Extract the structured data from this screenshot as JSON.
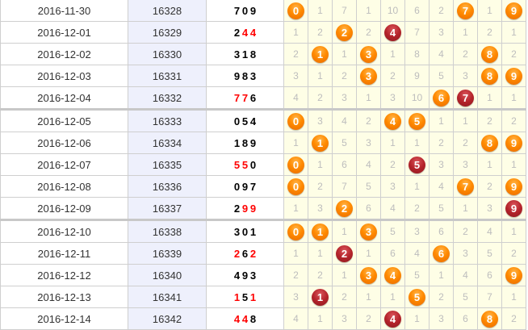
{
  "colors": {
    "hit_ball": "#ff8a00",
    "repeat_ball": "#b4232b",
    "repeat_digit": "#ff0000",
    "issue_bg": "#eef0fc",
    "cell_bg": "#fefee6"
  },
  "rows": [
    {
      "date": "2016-11-30",
      "issue": "16328",
      "draw": [
        "7",
        "0",
        "9"
      ],
      "repeat": null,
      "cells": [
        "0",
        "1",
        "7",
        "1",
        "10",
        "6",
        "2",
        "7",
        "1",
        "9"
      ],
      "hits": [
        0,
        7,
        9
      ]
    },
    {
      "date": "2016-12-01",
      "issue": "16329",
      "draw": [
        "2",
        "4",
        "4"
      ],
      "repeat": "4",
      "cells": [
        "1",
        "2",
        "2",
        "2",
        "4",
        "7",
        "3",
        "1",
        "2",
        "1"
      ],
      "hits": [
        2,
        4
      ]
    },
    {
      "date": "2016-12-02",
      "issue": "16330",
      "draw": [
        "3",
        "1",
        "8"
      ],
      "repeat": null,
      "cells": [
        "2",
        "1",
        "1",
        "3",
        "1",
        "8",
        "4",
        "2",
        "8",
        "2"
      ],
      "hits": [
        1,
        3,
        8
      ]
    },
    {
      "date": "2016-12-03",
      "issue": "16331",
      "draw": [
        "9",
        "8",
        "3"
      ],
      "repeat": null,
      "cells": [
        "3",
        "1",
        "2",
        "3",
        "2",
        "9",
        "5",
        "3",
        "8",
        "9"
      ],
      "hits": [
        3,
        8,
        9
      ]
    },
    {
      "date": "2016-12-04",
      "issue": "16332",
      "draw": [
        "7",
        "7",
        "6"
      ],
      "repeat": "7",
      "cells": [
        "4",
        "2",
        "3",
        "1",
        "3",
        "10",
        "6",
        "7",
        "1",
        "1"
      ],
      "hits": [
        6,
        7
      ]
    },
    {
      "date": "2016-12-05",
      "issue": "16333",
      "draw": [
        "0",
        "5",
        "4"
      ],
      "repeat": null,
      "cells": [
        "0",
        "3",
        "4",
        "2",
        "4",
        "5",
        "1",
        "1",
        "2",
        "2"
      ],
      "hits": [
        0,
        4,
        5
      ]
    },
    {
      "date": "2016-12-06",
      "issue": "16334",
      "draw": [
        "1",
        "8",
        "9"
      ],
      "repeat": null,
      "cells": [
        "1",
        "1",
        "5",
        "3",
        "1",
        "1",
        "2",
        "2",
        "8",
        "9"
      ],
      "hits": [
        1,
        8,
        9
      ]
    },
    {
      "date": "2016-12-07",
      "issue": "16335",
      "draw": [
        "5",
        "5",
        "0"
      ],
      "repeat": "5",
      "cells": [
        "0",
        "1",
        "6",
        "4",
        "2",
        "5",
        "3",
        "3",
        "1",
        "1"
      ],
      "hits": [
        0,
        5
      ]
    },
    {
      "date": "2016-12-08",
      "issue": "16336",
      "draw": [
        "0",
        "9",
        "7"
      ],
      "repeat": null,
      "cells": [
        "0",
        "2",
        "7",
        "5",
        "3",
        "1",
        "4",
        "7",
        "2",
        "9"
      ],
      "hits": [
        0,
        7,
        9
      ]
    },
    {
      "date": "2016-12-09",
      "issue": "16337",
      "draw": [
        "2",
        "9",
        "9"
      ],
      "repeat": "9",
      "cells": [
        "1",
        "3",
        "2",
        "6",
        "4",
        "2",
        "5",
        "1",
        "3",
        "9"
      ],
      "hits": [
        2,
        9
      ]
    },
    {
      "date": "2016-12-10",
      "issue": "16338",
      "draw": [
        "3",
        "0",
        "1"
      ],
      "repeat": null,
      "cells": [
        "0",
        "1",
        "1",
        "3",
        "5",
        "3",
        "6",
        "2",
        "4",
        "1"
      ],
      "hits": [
        0,
        1,
        3
      ]
    },
    {
      "date": "2016-12-11",
      "issue": "16339",
      "draw": [
        "2",
        "6",
        "2"
      ],
      "repeat": "2",
      "cells": [
        "1",
        "1",
        "2",
        "1",
        "6",
        "4",
        "6",
        "3",
        "5",
        "2"
      ],
      "hits": [
        2,
        6
      ]
    },
    {
      "date": "2016-12-12",
      "issue": "16340",
      "draw": [
        "4",
        "9",
        "3"
      ],
      "repeat": null,
      "cells": [
        "2",
        "2",
        "1",
        "3",
        "4",
        "5",
        "1",
        "4",
        "6",
        "9"
      ],
      "hits": [
        3,
        4,
        9
      ]
    },
    {
      "date": "2016-12-13",
      "issue": "16341",
      "draw": [
        "1",
        "5",
        "1"
      ],
      "repeat": "1",
      "cells": [
        "3",
        "1",
        "2",
        "1",
        "1",
        "5",
        "2",
        "5",
        "7",
        "1"
      ],
      "hits": [
        1,
        5
      ]
    },
    {
      "date": "2016-12-14",
      "issue": "16342",
      "draw": [
        "4",
        "4",
        "8"
      ],
      "repeat": "4",
      "cells": [
        "4",
        "1",
        "3",
        "2",
        "4",
        "1",
        "3",
        "6",
        "8",
        "2"
      ],
      "hits": [
        4,
        8
      ]
    }
  ]
}
